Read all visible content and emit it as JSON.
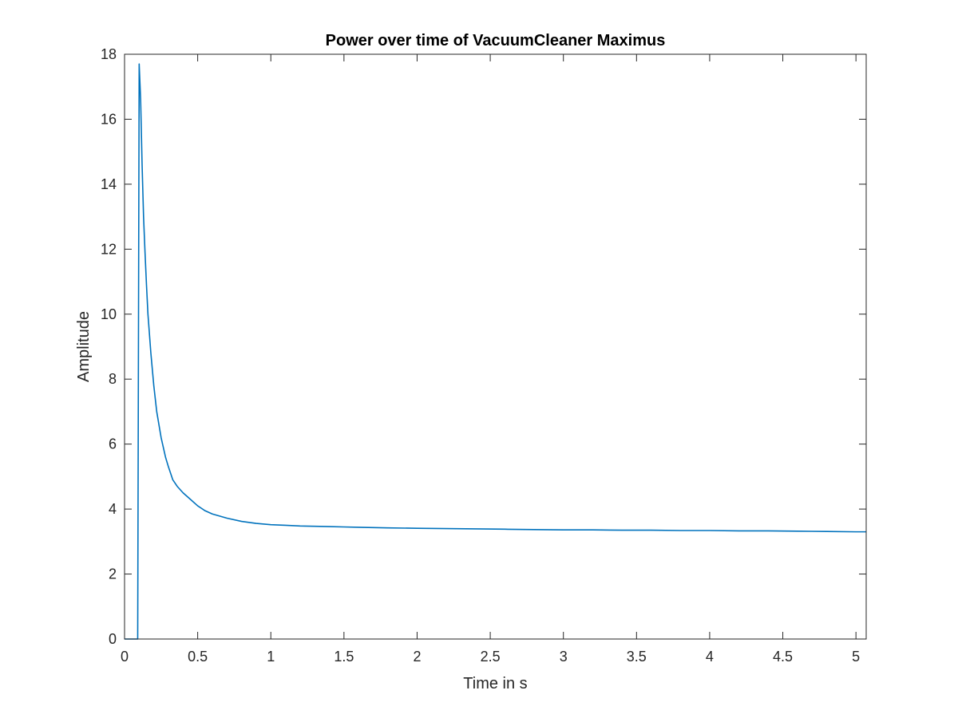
{
  "chart_data": {
    "type": "line",
    "title": "Power over time of VacuumCleaner Maximus",
    "xlabel": "Time in s",
    "ylabel": "Amplitude",
    "xlim": [
      0,
      5.07
    ],
    "ylim": [
      0,
      18
    ],
    "xticks": [
      0,
      0.5,
      1,
      1.5,
      2,
      2.5,
      3,
      3.5,
      4,
      4.5,
      5
    ],
    "xtick_labels": [
      "0",
      "0.5",
      "1",
      "1.5",
      "2",
      "2.5",
      "3",
      "3.5",
      "4",
      "4.5",
      "5"
    ],
    "yticks": [
      0,
      2,
      4,
      6,
      8,
      10,
      12,
      14,
      16,
      18
    ],
    "ytick_labels": [
      "0",
      "2",
      "4",
      "6",
      "8",
      "10",
      "12",
      "14",
      "16",
      "18"
    ],
    "grid": false,
    "box": true,
    "series": [
      {
        "color": "#0072BD",
        "x": [
          0,
          0.08,
          0.09,
          0.1,
          0.11,
          0.12,
          0.13,
          0.14,
          0.15,
          0.16,
          0.18,
          0.2,
          0.22,
          0.25,
          0.28,
          0.3,
          0.33,
          0.36,
          0.4,
          0.45,
          0.5,
          0.55,
          0.6,
          0.7,
          0.8,
          0.9,
          1.0,
          1.1,
          1.2,
          1.3,
          1.4,
          1.5,
          1.6,
          1.8,
          2.0,
          2.2,
          2.4,
          2.6,
          2.8,
          3.0,
          3.2,
          3.4,
          3.6,
          3.8,
          4.0,
          4.2,
          4.4,
          4.6,
          4.8,
          5.0,
          5.07
        ],
        "y": [
          0,
          0,
          0,
          17.7,
          16.6,
          14.6,
          13.0,
          11.9,
          10.9,
          10.0,
          8.8,
          7.8,
          7.0,
          6.2,
          5.6,
          5.3,
          4.9,
          4.7,
          4.5,
          4.3,
          4.1,
          3.95,
          3.85,
          3.72,
          3.62,
          3.56,
          3.52,
          3.5,
          3.48,
          3.47,
          3.46,
          3.45,
          3.44,
          3.42,
          3.41,
          3.4,
          3.39,
          3.38,
          3.37,
          3.36,
          3.36,
          3.35,
          3.35,
          3.34,
          3.34,
          3.33,
          3.33,
          3.32,
          3.31,
          3.3,
          3.3
        ]
      }
    ]
  }
}
